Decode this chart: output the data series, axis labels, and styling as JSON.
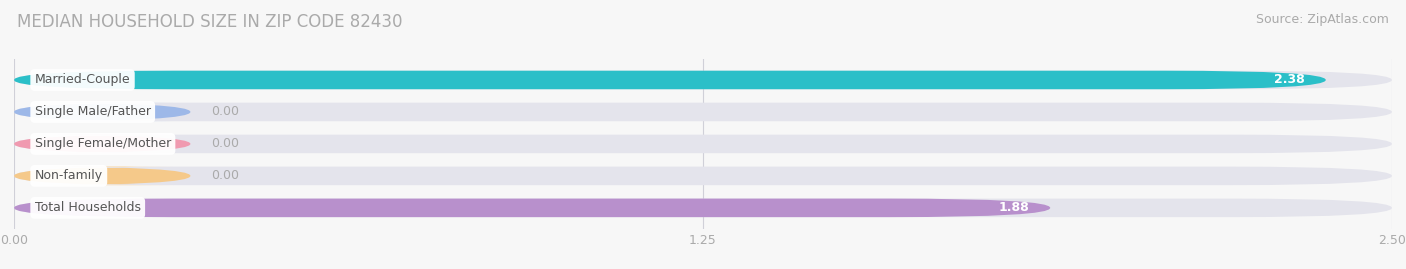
{
  "title": "MEDIAN HOUSEHOLD SIZE IN ZIP CODE 82430",
  "source": "Source: ZipAtlas.com",
  "categories": [
    "Married-Couple",
    "Single Male/Father",
    "Single Female/Mother",
    "Non-family",
    "Total Households"
  ],
  "values": [
    2.38,
    0.0,
    0.0,
    0.0,
    1.88
  ],
  "display_values": [
    "2.38",
    "0.00",
    "0.00",
    "0.00",
    "1.88"
  ],
  "bar_colors": [
    "#2bbfc8",
    "#9db8e8",
    "#f09ab0",
    "#f5c98a",
    "#b890cc"
  ],
  "xlim": [
    0,
    2.5
  ],
  "xticks": [
    0.0,
    1.25,
    2.5
  ],
  "xtick_labels": [
    "0.00",
    "1.25",
    "2.50"
  ],
  "background_color": "#f7f7f7",
  "bar_background_color": "#e4e4ec",
  "title_fontsize": 12,
  "source_fontsize": 9,
  "bar_height": 0.58,
  "label_fontsize": 9,
  "value_fontsize": 9,
  "zero_bar_width": 0.32,
  "title_color": "#aaaaaa",
  "source_color": "#aaaaaa",
  "tick_color": "#aaaaaa",
  "value_color_inside": "#ffffff",
  "value_color_outside": "#aaaaaa"
}
